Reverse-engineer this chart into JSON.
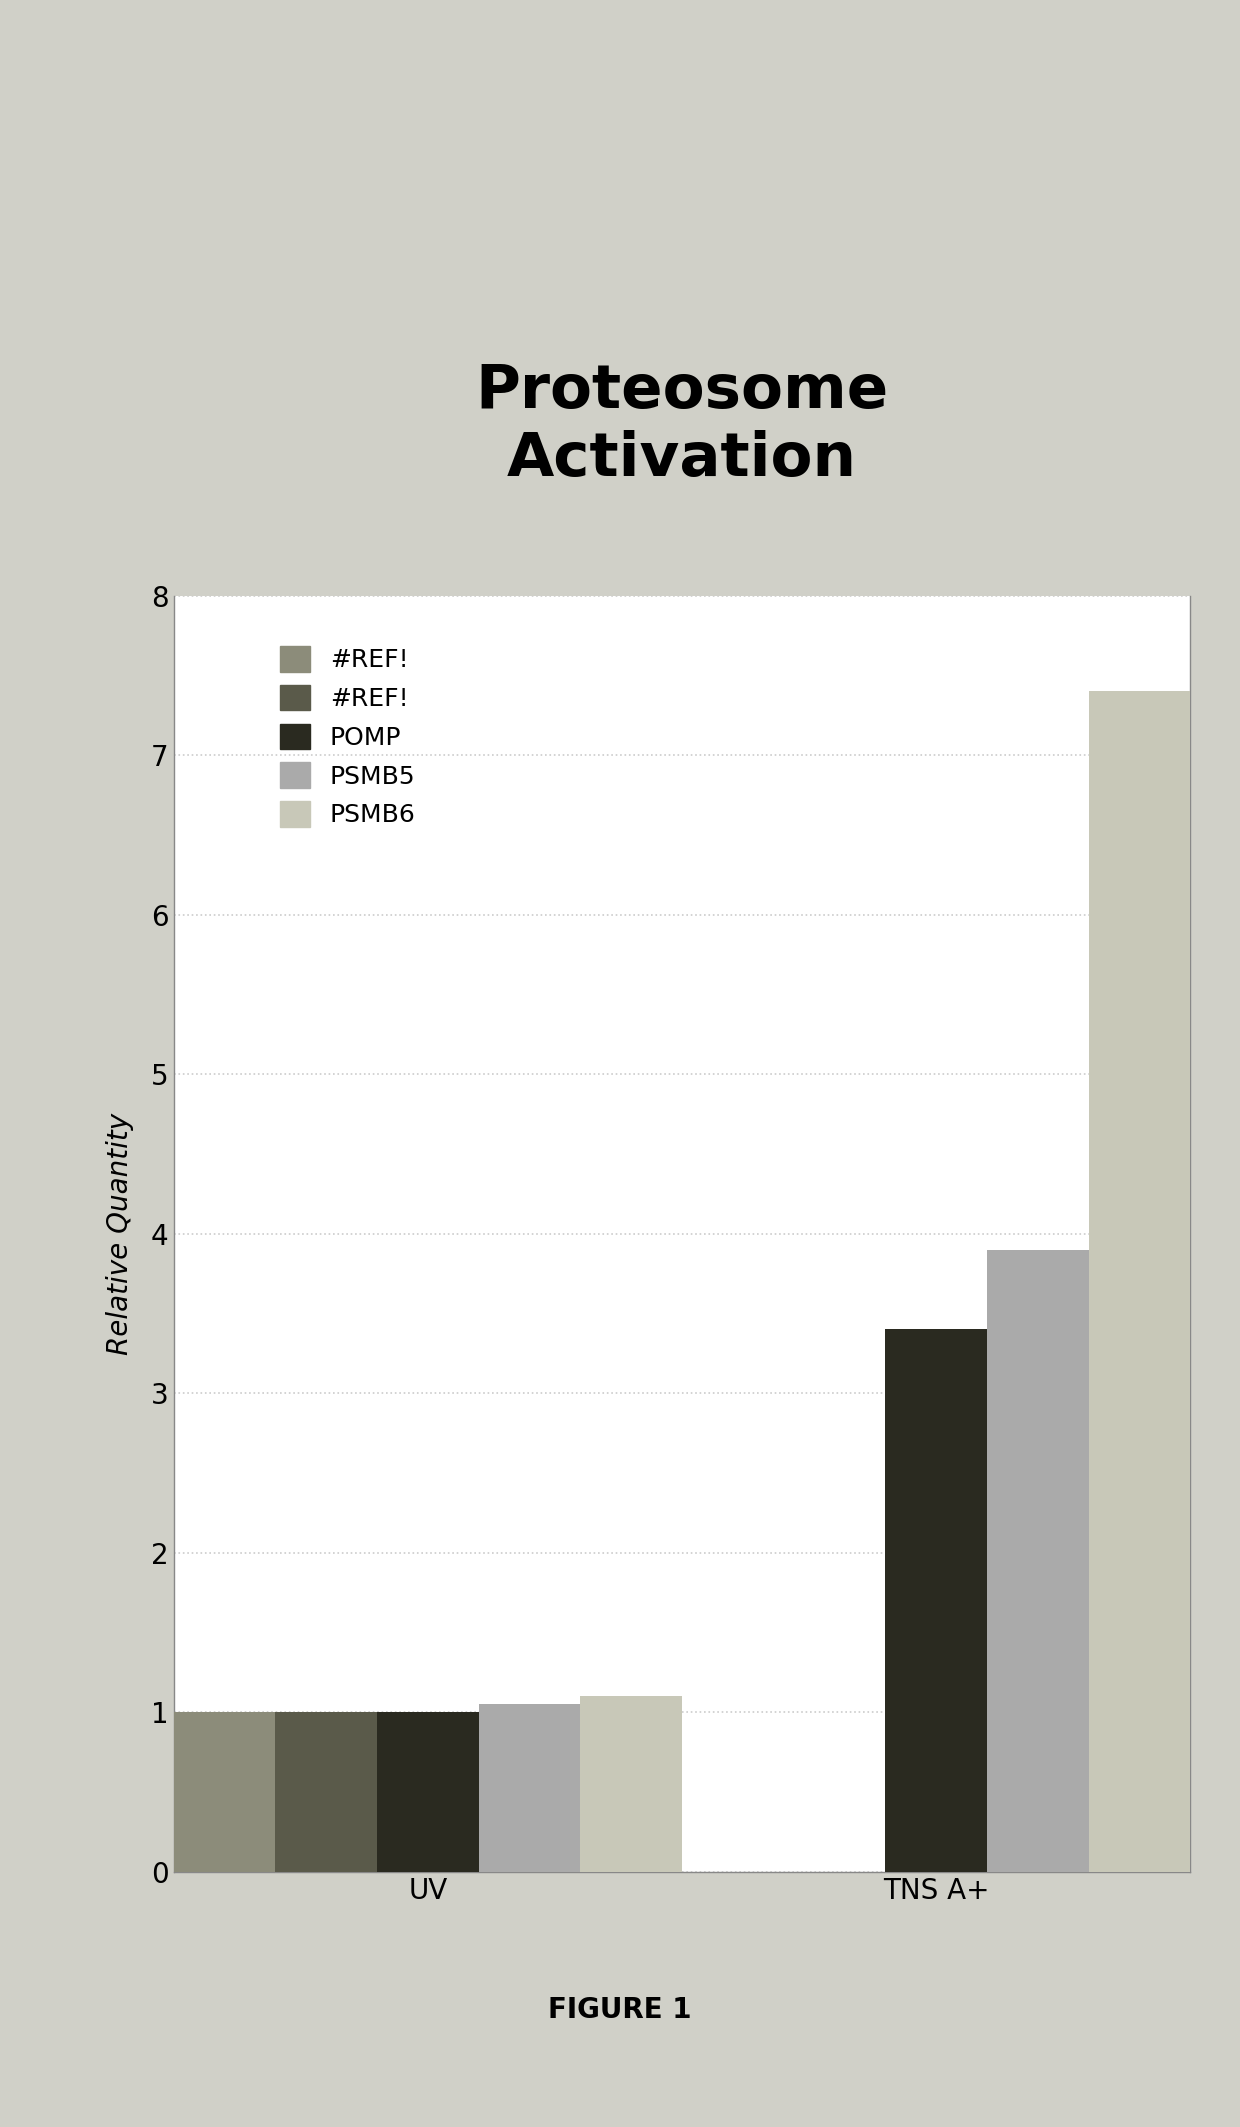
{
  "title": "Proteosome\nActivation",
  "ylabel": "Relative Quantity",
  "xlabel_categories": [
    "UV",
    "TNS A+"
  ],
  "figure_caption": "FIGURE 1",
  "ylim": [
    0,
    8
  ],
  "yticks": [
    0,
    1,
    2,
    3,
    4,
    5,
    6,
    7,
    8
  ],
  "series": [
    {
      "label": "#REF!",
      "color": "#8c8c7a",
      "values": [
        1.0,
        0.0
      ]
    },
    {
      "label": "#REF!",
      "color": "#5a5a4a",
      "values": [
        1.0,
        0.0
      ]
    },
    {
      "label": "POMP",
      "color": "#2a2a20",
      "values": [
        1.0,
        3.4
      ]
    },
    {
      "label": "PSMB5",
      "color": "#aaaaaa",
      "values": [
        1.05,
        3.9
      ]
    },
    {
      "label": "PSMB6",
      "color": "#c8c8b8",
      "values": [
        1.1,
        7.4
      ]
    }
  ],
  "bar_width": 0.18,
  "group_centers": [
    0.45,
    1.35
  ],
  "page_background": "#d0d0c8",
  "plot_background": "#ffffff",
  "grid_color": "#cccccc",
  "grid_linestyle": "dotted",
  "title_fontsize": 44,
  "axis_fontsize": 20,
  "tick_fontsize": 20,
  "legend_fontsize": 18,
  "caption_fontsize": 20,
  "spine_color": "#888888"
}
